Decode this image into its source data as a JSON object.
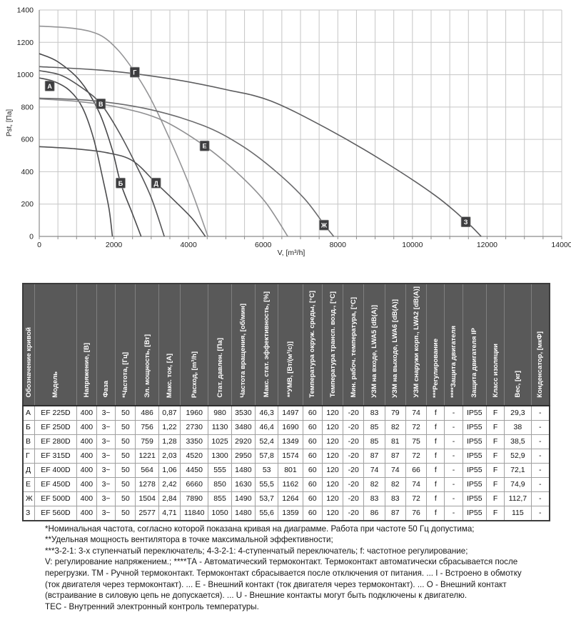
{
  "chart_data": {
    "type": "line",
    "title": "",
    "xlabel": "V, [m³/h]",
    "ylabel": "Pst, [Па]",
    "xlim": [
      0,
      14000
    ],
    "ylim": [
      0,
      1400
    ],
    "x_tick_step": 2000,
    "x_minor_step": 500,
    "y_tick_step": 200,
    "grid": "on",
    "legend": "labeled chips on curves",
    "series": [
      {
        "name": "А",
        "color": "#4c4c4e",
        "label_at": [
          280,
          930
        ],
        "points": [
          [
            0,
            980
          ],
          [
            400,
            958
          ],
          [
            800,
            905
          ],
          [
            1150,
            800
          ],
          [
            1450,
            610
          ],
          [
            1700,
            360
          ],
          [
            1870,
            170
          ],
          [
            1960,
            0
          ]
        ]
      },
      {
        "name": "Б",
        "color": "#48484a",
        "label_at": [
          2180,
          330
        ],
        "points": [
          [
            0,
            1130
          ],
          [
            500,
            1080
          ],
          [
            1100,
            960
          ],
          [
            1600,
            770
          ],
          [
            1950,
            540
          ],
          [
            2180,
            330
          ],
          [
            2480,
            150
          ],
          [
            2730,
            0
          ]
        ]
      },
      {
        "name": "В",
        "color": "#545456",
        "label_at": [
          1650,
          820
        ],
        "points": [
          [
            0,
            1025
          ],
          [
            600,
            995
          ],
          [
            1200,
            910
          ],
          [
            1650,
            820
          ],
          [
            2100,
            660
          ],
          [
            2600,
            440
          ],
          [
            3000,
            240
          ],
          [
            3350,
            0
          ]
        ]
      },
      {
        "name": "Г",
        "color": "#949496",
        "label_at": [
          2560,
          1015
        ],
        "points": [
          [
            0,
            1300
          ],
          [
            900,
            1287
          ],
          [
            1600,
            1248
          ],
          [
            2100,
            1155
          ],
          [
            2560,
            1015
          ],
          [
            3000,
            845
          ],
          [
            3500,
            600
          ],
          [
            4050,
            300
          ],
          [
            4520,
            0
          ]
        ]
      },
      {
        "name": "Д",
        "color": "#505052",
        "label_at": [
          3130,
          330
        ],
        "points": [
          [
            0,
            555
          ],
          [
            900,
            543
          ],
          [
            1800,
            518
          ],
          [
            2500,
            468
          ],
          [
            3130,
            330
          ],
          [
            3650,
            215
          ],
          [
            4100,
            110
          ],
          [
            4450,
            0
          ]
        ]
      },
      {
        "name": "Е",
        "color": "#8f8f91",
        "label_at": [
          4430,
          560
        ],
        "points": [
          [
            0,
            850
          ],
          [
            1100,
            833
          ],
          [
            2200,
            795
          ],
          [
            3300,
            718
          ],
          [
            4430,
            560
          ],
          [
            5300,
            395
          ],
          [
            6050,
            215
          ],
          [
            6660,
            0
          ]
        ]
      },
      {
        "name": "Ж",
        "color": "#6b6b6d",
        "label_at": [
          7630,
          70
        ],
        "points": [
          [
            0,
            855
          ],
          [
            1500,
            838
          ],
          [
            3000,
            783
          ],
          [
            4400,
            685
          ],
          [
            5400,
            565
          ],
          [
            6300,
            410
          ],
          [
            7100,
            235
          ],
          [
            7630,
            75
          ],
          [
            7890,
            0
          ]
        ]
      },
      {
        "name": "З",
        "color": "#5d5d5f",
        "label_at": [
          11430,
          90
        ],
        "points": [
          [
            0,
            1050
          ],
          [
            1800,
            1025
          ],
          [
            3500,
            975
          ],
          [
            5000,
            908
          ],
          [
            6200,
            838
          ],
          [
            7700,
            668
          ],
          [
            9200,
            468
          ],
          [
            10600,
            255
          ],
          [
            11430,
            95
          ],
          [
            11840,
            0
          ]
        ]
      }
    ]
  },
  "table": {
    "columns": [
      "Обозначение кривой",
      "Модель",
      "Напряжение, [В]",
      "Фаза",
      "*Частота, [Гц]",
      "Эл. мощность, [Вт]",
      "Макс. ток, [А]",
      "Расход, [m³/h]",
      "Стат. давлен. [Па]",
      "Частота вращения, [об/мин]",
      "Макс. стат. эффективность, [%]",
      "**УМВ, [Вт/(м³/с)]",
      "Температура окруж. среды, [°C]",
      "Температура трансп. возд., [°C]",
      "Мин. рабоч. температура, [°C]",
      "УЗМ на входе, LWA5 [dB(A)]",
      "УЗМ на выходе, LWA6 [dB(A)]",
      "УЗМ снаружи корп., LWA2 [dB(A)]",
      "***Регулирование",
      "****Защита двигателя",
      "Защита двигателя IP",
      "Класс изоляции",
      "Вес, [кг]",
      "Конденсатор, [мкФ]"
    ],
    "rows": [
      [
        "А",
        "EF 225D",
        "400",
        "3~",
        "50",
        "486",
        "0,87",
        "1960",
        "980",
        "3530",
        "46,3",
        "1497",
        "60",
        "120",
        "-20",
        "83",
        "79",
        "74",
        "f",
        "-",
        "IP55",
        "F",
        "29,3",
        "-"
      ],
      [
        "Б",
        "EF 250D",
        "400",
        "3~",
        "50",
        "756",
        "1,22",
        "2730",
        "1130",
        "3480",
        "46,4",
        "1690",
        "60",
        "120",
        "-20",
        "85",
        "82",
        "72",
        "f",
        "-",
        "IP55",
        "F",
        "38",
        "-"
      ],
      [
        "В",
        "EF 280D",
        "400",
        "3~",
        "50",
        "759",
        "1,28",
        "3350",
        "1025",
        "2920",
        "52,4",
        "1349",
        "60",
        "120",
        "-20",
        "85",
        "81",
        "75",
        "f",
        "-",
        "IP55",
        "F",
        "38,5",
        "-"
      ],
      [
        "Г",
        "EF 315D",
        "400",
        "3~",
        "50",
        "1221",
        "2,03",
        "4520",
        "1300",
        "2950",
        "57,8",
        "1574",
        "60",
        "120",
        "-20",
        "87",
        "87",
        "72",
        "f",
        "-",
        "IP55",
        "F",
        "52,9",
        "-"
      ],
      [
        "Д",
        "EF 400D",
        "400",
        "3~",
        "50",
        "564",
        "1,06",
        "4450",
        "555",
        "1480",
        "53",
        "801",
        "60",
        "120",
        "-20",
        "74",
        "74",
        "66",
        "f",
        "-",
        "IP55",
        "F",
        "72,1",
        "-"
      ],
      [
        "Е",
        "EF 450D",
        "400",
        "3~",
        "50",
        "1278",
        "2,42",
        "6660",
        "850",
        "1630",
        "55,5",
        "1162",
        "60",
        "120",
        "-20",
        "82",
        "82",
        "74",
        "f",
        "-",
        "IP55",
        "F",
        "74,9",
        "-"
      ],
      [
        "Ж",
        "EF 500D",
        "400",
        "3~",
        "50",
        "1504",
        "2,84",
        "7890",
        "855",
        "1490",
        "53,7",
        "1264",
        "60",
        "120",
        "-20",
        "83",
        "83",
        "72",
        "f",
        "-",
        "IP55",
        "F",
        "112,7",
        "-"
      ],
      [
        "З",
        "EF 560D",
        "400",
        "3~",
        "50",
        "2577",
        "4,71",
        "11840",
        "1050",
        "1480",
        "55,6",
        "1359",
        "60",
        "120",
        "-20",
        "86",
        "87",
        "76",
        "f",
        "-",
        "IP55",
        "F",
        "115",
        "-"
      ]
    ]
  },
  "footnotes": {
    "lines": [
      "*Номинальная частота, согласно которой показана кривая на диаграмме. Работа при частоте 50 Гц допустима;",
      "**Удельная мощность вентилятора в точке максимальной эффективности;",
      "***3-2-1: 3-х ступенчатый переключатель; 4-3-2-1: 4-ступенчатый переключатель; f: частотное регулирование;",
      "V: регулирование напряжением.; ****ТА - Автоматический термоконтакт. Термоконтакт автоматически сбрасывается после",
      "перегрузки. ТМ - Ручной термоконтакт. Термоконтакт сбрасывается после отключения от питания. ... I - Встроено в обмотку",
      "(ток двигателя через термоконтакт). ... Е - Внешний контакт (ток двигателя через термоконтакт). ... О - Внешний контакт",
      "(встраивание в силовую цепь не допускается). ... U - Внешние контакты могут быть подключены к двигателю.",
      "ТЕС - Внутренний электронный контроль температуры."
    ]
  },
  "colors": {
    "grid": "#c6c6c6",
    "axis": "#8c8c8c",
    "tick_text": "#222222",
    "chip_bg": "#3d3d3f",
    "chip_border": "#909090",
    "chip_text": "#ffffff",
    "table_header_bg": "#595959",
    "table_header_text": "#ffffff"
  }
}
